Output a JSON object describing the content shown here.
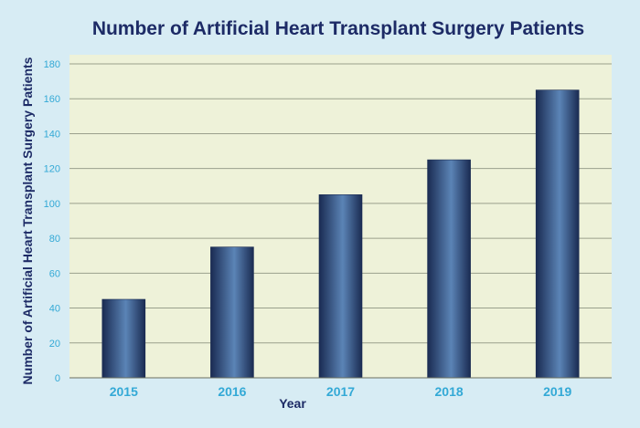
{
  "chart_data": {
    "type": "bar",
    "title": "Number of Artificial Heart Transplant Surgery Patients",
    "xlabel": "Year",
    "ylabel": "Number of Artificial Heart Transplant Surgery Patients",
    "categories": [
      "2015",
      "2016",
      "2017",
      "2018",
      "2019"
    ],
    "values": [
      45,
      75,
      105,
      125,
      165
    ],
    "ylim": [
      0,
      180
    ],
    "yticks": [
      0,
      20,
      40,
      60,
      80,
      100,
      120,
      140,
      160,
      180
    ],
    "grid": true,
    "legend": "none"
  },
  "colors": {
    "background": "#d7ecf4",
    "plot_area": "#eef2d9",
    "grid": "#9aa08c",
    "bar_dark": "#1a2b52",
    "bar_light": "#5b84b6",
    "tick_label": "#33a9d6",
    "title": "#1d2b66"
  }
}
